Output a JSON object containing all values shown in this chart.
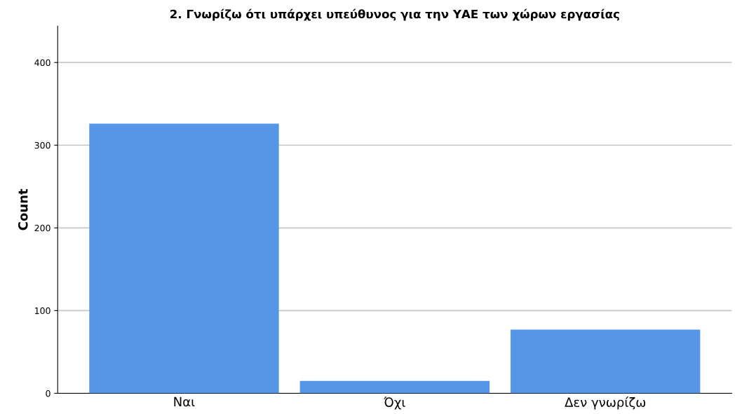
{
  "chart_data": {
    "type": "bar",
    "title": "2. Γνωρίζω ότι υπάρχει υπεύθυνος για την ΥΑΕ των χώρων εργασίας",
    "ylabel": "Count",
    "categories": [
      "Ναι",
      "Όχι",
      "Δεν γνωρίζω"
    ],
    "values": [
      326,
      15,
      77
    ],
    "color": "#5596e6",
    "ylim": [
      0,
      444
    ],
    "yticks": [
      0,
      100,
      200,
      300,
      400
    ],
    "grid": "y",
    "legend": false
  }
}
